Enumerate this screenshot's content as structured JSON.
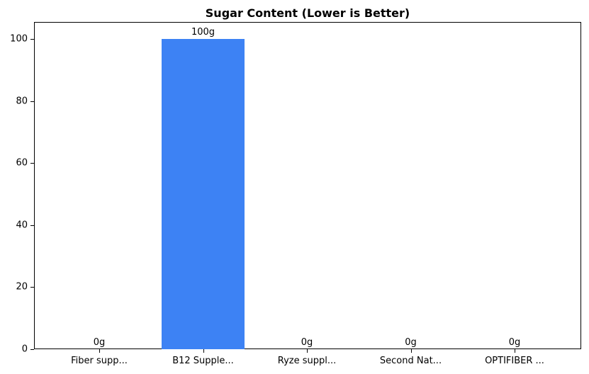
{
  "chart_data": {
    "type": "bar",
    "title": "Sugar Content (Lower is Better)",
    "categories": [
      "Fiber supp...",
      "B12 Supple...",
      "Ryze suppl...",
      "Second Nat...",
      "OPTIFIBER ..."
    ],
    "values": [
      0,
      100,
      0,
      0,
      0
    ],
    "bar_labels": [
      "0g",
      "100g",
      "0g",
      "0g",
      "0g"
    ],
    "xlabel": "",
    "ylabel": "",
    "ylim": [
      0,
      105.5
    ],
    "yticks": [
      0,
      20,
      40,
      60,
      80,
      100
    ],
    "bar_color": "#3d82f4",
    "axis_color": "#000000",
    "background_color": "#ffffff",
    "grid": false,
    "legend_position": "none"
  }
}
